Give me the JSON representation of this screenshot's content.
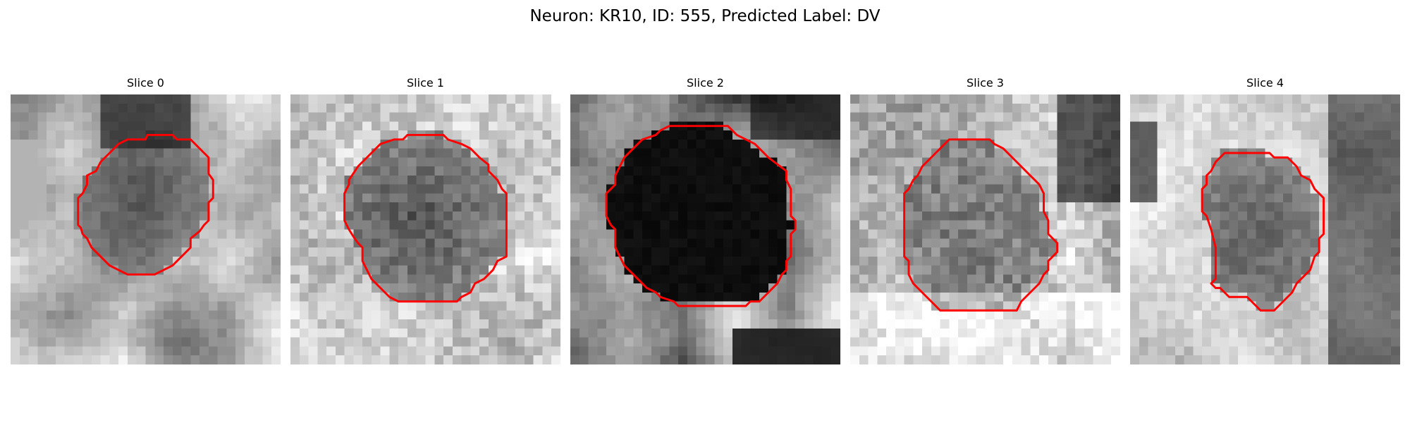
{
  "title": "Neuron: KR10, ID: 555, Predicted Label: DV",
  "panels": [
    {
      "title": "Slice 0",
      "pattern": "ring",
      "seed": 11,
      "contour": [
        [
          15.2,
          4.5
        ],
        [
          18.0,
          4.5
        ],
        [
          18.5,
          5.0
        ],
        [
          20.0,
          5.0
        ],
        [
          21.5,
          6.5
        ],
        [
          22.0,
          7.0
        ],
        [
          22.0,
          8.8
        ],
        [
          22.5,
          9.5
        ],
        [
          22.5,
          11.5
        ],
        [
          22.0,
          12.0
        ],
        [
          22.0,
          14.0
        ],
        [
          21.5,
          14.5
        ],
        [
          21.0,
          15.2
        ],
        [
          20.0,
          16.0
        ],
        [
          20.0,
          17.0
        ],
        [
          19.0,
          18.0
        ],
        [
          18.0,
          19.0
        ],
        [
          17.0,
          19.5
        ],
        [
          16.0,
          20.0
        ],
        [
          13.0,
          20.0
        ],
        [
          12.0,
          19.5
        ],
        [
          11.0,
          19.0
        ],
        [
          10.0,
          18.0
        ],
        [
          9.0,
          17.0
        ],
        [
          8.5,
          16.0
        ],
        [
          8.0,
          15.5
        ],
        [
          7.8,
          14.8
        ],
        [
          7.5,
          14.5
        ],
        [
          7.5,
          11.5
        ],
        [
          8.0,
          11.0
        ],
        [
          8.5,
          10.0
        ],
        [
          8.5,
          9.0
        ],
        [
          9.5,
          8.5
        ],
        [
          10.0,
          7.5
        ],
        [
          11.0,
          6.5
        ],
        [
          12.0,
          5.5
        ],
        [
          13.0,
          5.0
        ],
        [
          15.0,
          5.0
        ]
      ]
    },
    {
      "title": "Slice 1",
      "pattern": "lightbg",
      "seed": 23,
      "contour": [
        [
          13.0,
          4.5
        ],
        [
          17.0,
          4.5
        ],
        [
          17.5,
          5.0
        ],
        [
          19.0,
          5.5
        ],
        [
          20.0,
          6.0
        ],
        [
          21.0,
          7.0
        ],
        [
          22.0,
          7.8
        ],
        [
          22.0,
          8.5
        ],
        [
          23.0,
          9.5
        ],
        [
          23.5,
          10.5
        ],
        [
          24.0,
          11.0
        ],
        [
          24.0,
          18.0
        ],
        [
          23.0,
          18.5
        ],
        [
          22.5,
          19.5
        ],
        [
          21.5,
          20.5
        ],
        [
          20.5,
          21.0
        ],
        [
          20.0,
          22.0
        ],
        [
          19.0,
          22.5
        ],
        [
          18.5,
          23.0
        ],
        [
          16.0,
          23.0
        ],
        [
          12.0,
          23.0
        ],
        [
          11.0,
          22.5
        ],
        [
          10.5,
          22.0
        ],
        [
          9.5,
          21.0
        ],
        [
          9.0,
          20.5
        ],
        [
          8.5,
          19.5
        ],
        [
          8.0,
          18.5
        ],
        [
          8.0,
          17.0
        ],
        [
          7.5,
          16.5
        ],
        [
          7.0,
          15.8
        ],
        [
          6.5,
          15.0
        ],
        [
          6.0,
          14.0
        ],
        [
          6.0,
          11.0
        ],
        [
          6.5,
          10.0
        ],
        [
          6.5,
          9.5
        ],
        [
          7.5,
          8.0
        ],
        [
          8.5,
          7.0
        ],
        [
          9.5,
          6.0
        ],
        [
          10.0,
          5.5
        ],
        [
          11.5,
          5.0
        ],
        [
          12.5,
          5.0
        ]
      ]
    },
    {
      "title": "Slice 2",
      "pattern": "dark",
      "seed": 37,
      "contour": [
        [
          12.5,
          3.5
        ],
        [
          17.5,
          3.5
        ],
        [
          18.5,
          4.5
        ],
        [
          19.5,
          5.0
        ],
        [
          20.5,
          5.5
        ],
        [
          21.0,
          6.0
        ],
        [
          22.0,
          7.0
        ],
        [
          24.0,
          8.5
        ],
        [
          24.0,
          9.5
        ],
        [
          24.5,
          10.5
        ],
        [
          24.5,
          13.5
        ],
        [
          25.0,
          14.0
        ],
        [
          25.0,
          15.0
        ],
        [
          24.5,
          15.5
        ],
        [
          24.5,
          18.0
        ],
        [
          24.0,
          18.5
        ],
        [
          24.0,
          19.5
        ],
        [
          23.5,
          20.0
        ],
        [
          23.0,
          21.0
        ],
        [
          22.0,
          22.0
        ],
        [
          21.5,
          22.5
        ],
        [
          21.0,
          23.0
        ],
        [
          20.0,
          23.0
        ],
        [
          19.5,
          23.5
        ],
        [
          12.0,
          23.5
        ],
        [
          11.5,
          23.0
        ],
        [
          10.0,
          22.5
        ],
        [
          9.5,
          22.0
        ],
        [
          8.5,
          21.5
        ],
        [
          8.0,
          21.0
        ],
        [
          7.5,
          20.5
        ],
        [
          7.0,
          20.0
        ],
        [
          6.0,
          19.0
        ],
        [
          5.5,
          18.0
        ],
        [
          5.0,
          17.0
        ],
        [
          5.0,
          15.0
        ],
        [
          4.5,
          14.5
        ],
        [
          4.0,
          13.5
        ],
        [
          4.0,
          11.0
        ],
        [
          5.0,
          10.0
        ],
        [
          5.0,
          9.0
        ],
        [
          5.5,
          8.0
        ],
        [
          6.0,
          7.0
        ],
        [
          7.0,
          6.0
        ],
        [
          8.0,
          5.0
        ],
        [
          9.5,
          4.5
        ],
        [
          10.0,
          4.0
        ],
        [
          11.0,
          3.5
        ]
      ]
    },
    {
      "title": "Slice 3",
      "pattern": "mid",
      "seed": 53,
      "contour": [
        [
          12.0,
          5.0
        ],
        [
          15.5,
          5.0
        ],
        [
          16.0,
          5.5
        ],
        [
          17.0,
          6.0
        ],
        [
          18.0,
          7.0
        ],
        [
          19.0,
          8.0
        ],
        [
          20.0,
          9.0
        ],
        [
          21.0,
          10.0
        ],
        [
          21.5,
          11.0
        ],
        [
          21.5,
          13.0
        ],
        [
          22.0,
          14.0
        ],
        [
          22.0,
          15.5
        ],
        [
          22.5,
          16.0
        ],
        [
          23.0,
          16.5
        ],
        [
          23.0,
          17.5
        ],
        [
          22.5,
          18.0
        ],
        [
          22.0,
          18.5
        ],
        [
          22.0,
          19.5
        ],
        [
          21.5,
          20.0
        ],
        [
          21.0,
          21.0
        ],
        [
          20.5,
          21.5
        ],
        [
          20.0,
          22.0
        ],
        [
          19.5,
          22.5
        ],
        [
          19.0,
          23.0
        ],
        [
          18.5,
          24.0
        ],
        [
          10.0,
          24.0
        ],
        [
          9.5,
          23.5
        ],
        [
          8.5,
          22.5
        ],
        [
          8.0,
          22.0
        ],
        [
          7.5,
          21.5
        ],
        [
          7.0,
          21.0
        ],
        [
          6.5,
          20.0
        ],
        [
          6.5,
          18.5
        ],
        [
          6.0,
          18.0
        ],
        [
          6.0,
          11.0
        ],
        [
          6.5,
          10.5
        ],
        [
          7.0,
          9.5
        ],
        [
          7.5,
          9.0
        ],
        [
          8.0,
          8.0
        ],
        [
          9.0,
          7.0
        ],
        [
          10.0,
          6.0
        ],
        [
          10.5,
          5.5
        ],
        [
          11.0,
          5.0
        ]
      ]
    },
    {
      "title": "Slice 4",
      "pattern": "bright",
      "seed": 71,
      "contour": [
        [
          10.5,
          6.5
        ],
        [
          15.5,
          6.5
        ],
        [
          16.0,
          7.0
        ],
        [
          17.5,
          7.0
        ],
        [
          18.5,
          8.0
        ],
        [
          19.0,
          9.0
        ],
        [
          20.0,
          9.5
        ],
        [
          20.5,
          10.5
        ],
        [
          21.5,
          11.5
        ],
        [
          21.5,
          15.5
        ],
        [
          21.0,
          16.0
        ],
        [
          21.0,
          17.5
        ],
        [
          20.5,
          18.0
        ],
        [
          20.0,
          19.5
        ],
        [
          19.0,
          20.5
        ],
        [
          18.5,
          21.0
        ],
        [
          18.0,
          22.0
        ],
        [
          17.5,
          22.5
        ],
        [
          17.0,
          23.0
        ],
        [
          16.5,
          23.5
        ],
        [
          16.0,
          24.0
        ],
        [
          14.5,
          24.0
        ],
        [
          14.0,
          23.5
        ],
        [
          13.5,
          23.0
        ],
        [
          13.0,
          22.5
        ],
        [
          11.0,
          22.5
        ],
        [
          10.5,
          22.0
        ],
        [
          10.0,
          21.5
        ],
        [
          9.5,
          21.5
        ],
        [
          9.0,
          21.0
        ],
        [
          9.5,
          20.5
        ],
        [
          9.5,
          17.0
        ],
        [
          9.0,
          15.0
        ],
        [
          8.5,
          13.5
        ],
        [
          8.0,
          13.0
        ],
        [
          8.0,
          10.5
        ],
        [
          8.5,
          10.0
        ],
        [
          8.5,
          9.0
        ],
        [
          9.0,
          8.5
        ],
        [
          9.5,
          7.5
        ],
        [
          10.0,
          7.0
        ]
      ]
    }
  ],
  "colors": {
    "contour": "#ff0000"
  }
}
